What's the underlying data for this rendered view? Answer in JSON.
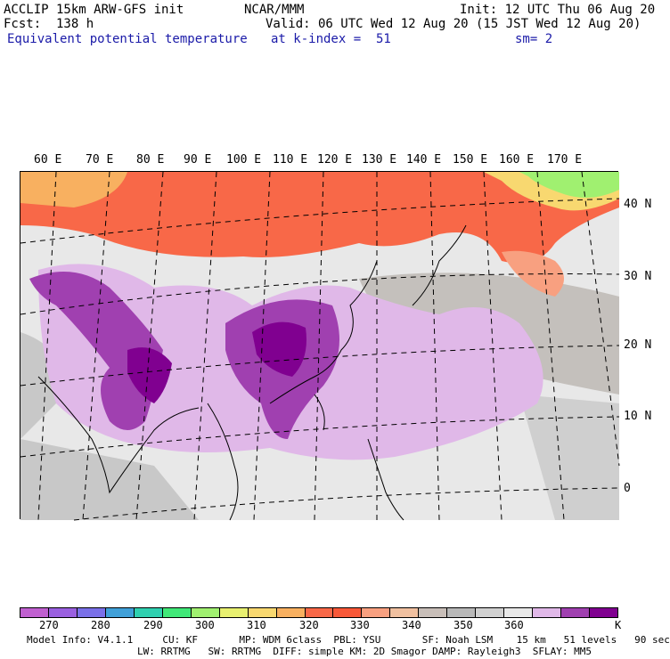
{
  "header": {
    "model_line": "ACCLIP 15km ARW-GFS init",
    "center": "NCAR/MMM",
    "init": "Init: 12 UTC Thu 06 Aug 20",
    "fcst": "Fcst:  138 h",
    "valid": "Valid: 06 UTC Wed 12 Aug 20 (15 JST Wed 12 Aug 20)",
    "field": "Equivalent potential temperature",
    "level": "at k-index =  51",
    "smooth": "sm= 2"
  },
  "map": {
    "lon_labels": [
      "60 E",
      "70 E",
      "80 E",
      "90 E",
      "100 E",
      "110 E",
      "120 E",
      "130 E",
      "140 E",
      "150 E",
      "160 E",
      "170 E"
    ],
    "lat_labels": [
      "40 N",
      "30 N",
      "20 N",
      "10 N",
      "0"
    ]
  },
  "colorbar": {
    "unit": "K",
    "labels": [
      "270",
      "280",
      "290",
      "300",
      "310",
      "320",
      "330",
      "340",
      "350",
      "360"
    ],
    "colors": [
      "#c060d0",
      "#9a60e0",
      "#7a70e8",
      "#40a0d8",
      "#30d0b0",
      "#40e878",
      "#a0f070",
      "#e8f070",
      "#f8d870",
      "#f8b060",
      "#f86848",
      "#f85838",
      "#f8a080",
      "#f0c0a0",
      "#c8beb8",
      "#b8b8b8",
      "#d0d0d0",
      "#e8e8e8",
      "#e0b8e8",
      "#a040b0",
      "#800090"
    ]
  },
  "footer": {
    "line1": "Model Info: V4.1.1     CU: KF       MP: WDM 6class  PBL: YSU       SF: Noah LSM    15 km   51 levels   90 sec",
    "line2": "LW: RRTMG   SW: RRTMG  DIFF: simple KM: 2D Smagor DAMP: Rayleigh3  SFLAY: MM5"
  }
}
